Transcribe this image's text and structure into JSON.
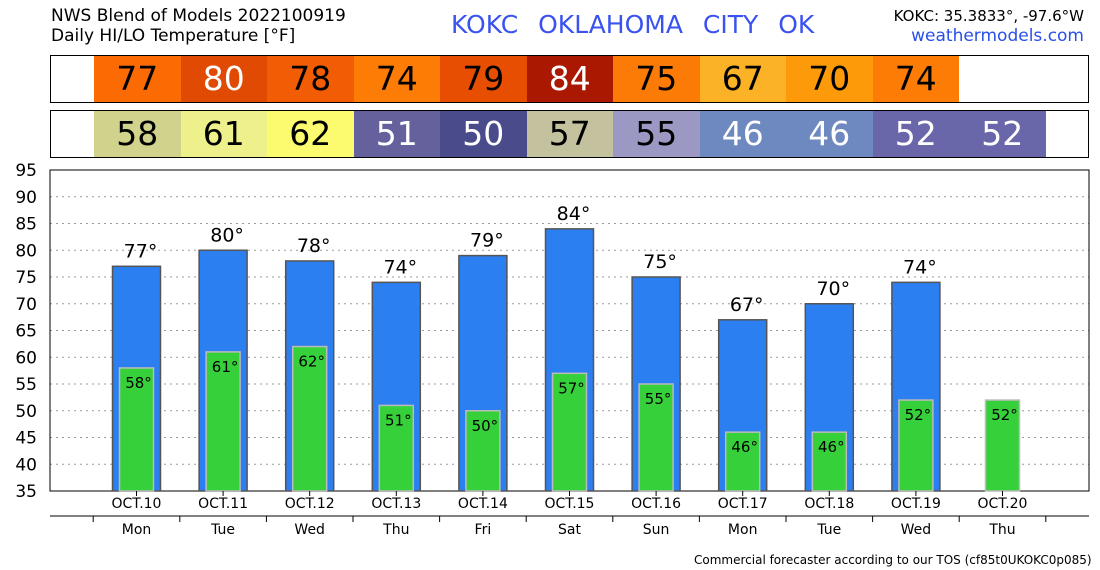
{
  "header": {
    "model_title": "NWS Blend of Models 2022100919",
    "variable_title": "Daily HI/LO Temperature [°F]",
    "station": "KOKC   OKLAHOMA CITY   OK",
    "coords": "KOKC: 35.3833°, -97.6°W",
    "website": "weathermodels.com"
  },
  "strips": {
    "hi": [
      {
        "value": "77",
        "color": "#fc6a04",
        "text_color": "#000000"
      },
      {
        "value": "80",
        "color": "#e04a02",
        "text_color": "#ffffff"
      },
      {
        "value": "78",
        "color": "#f25c04",
        "text_color": "#000000"
      },
      {
        "value": "74",
        "color": "#fc7c06",
        "text_color": "#000000"
      },
      {
        "value": "79",
        "color": "#e84e02",
        "text_color": "#000000"
      },
      {
        "value": "84",
        "color": "#ab1802",
        "text_color": "#ffffff"
      },
      {
        "value": "75",
        "color": "#fc7a06",
        "text_color": "#000000"
      },
      {
        "value": "67",
        "color": "#fcb226",
        "text_color": "#000000"
      },
      {
        "value": "70",
        "color": "#fc9a0a",
        "text_color": "#000000"
      },
      {
        "value": "74",
        "color": "#fc7c06",
        "text_color": "#000000"
      }
    ],
    "lo": [
      {
        "value": "58",
        "color": "#d1d28c",
        "text_color": "#000000"
      },
      {
        "value": "61",
        "color": "#eef08c",
        "text_color": "#000000"
      },
      {
        "value": "62",
        "color": "#fcfa6e",
        "text_color": "#000000"
      },
      {
        "value": "51",
        "color": "#64619c",
        "text_color": "#ffffff"
      },
      {
        "value": "50",
        "color": "#4a4b8a",
        "text_color": "#ffffff"
      },
      {
        "value": "57",
        "color": "#c4c29e",
        "text_color": "#000000"
      },
      {
        "value": "55",
        "color": "#9c98c4",
        "text_color": "#000000"
      },
      {
        "value": "46",
        "color": "#6e88c0",
        "text_color": "#ffffff"
      },
      {
        "value": "46",
        "color": "#6e88c0",
        "text_color": "#ffffff"
      },
      {
        "value": "52",
        "color": "#6a66aa",
        "text_color": "#ffffff"
      },
      {
        "value": "52",
        "color": "#6a66aa",
        "text_color": "#ffffff"
      }
    ]
  },
  "chart_data": {
    "type": "bar",
    "categories": [
      "OCT.10",
      "OCT.11",
      "OCT.12",
      "OCT.13",
      "OCT.14",
      "OCT.15",
      "OCT.16",
      "OCT.17",
      "OCT.18",
      "OCT.19",
      "OCT.20"
    ],
    "weekdays": [
      "Mon",
      "Tue",
      "Wed",
      "Thu",
      "Fri",
      "Sat",
      "Sun",
      "Mon",
      "Tue",
      "Wed",
      "Thu"
    ],
    "series": [
      {
        "values": [
          77,
          80,
          78,
          74,
          79,
          84,
          75,
          67,
          70,
          74,
          null
        ],
        "labels": [
          "77°",
          "80°",
          "78°",
          "74°",
          "79°",
          "84°",
          "75°",
          "67°",
          "70°",
          "74°",
          ""
        ],
        "color": "#2b7ff0"
      },
      {
        "values": [
          58,
          61,
          62,
          51,
          50,
          57,
          55,
          46,
          46,
          52,
          52
        ],
        "labels": [
          "58°",
          "61°",
          "62°",
          "51°",
          "50°",
          "57°",
          "55°",
          "46°",
          "46°",
          "52°",
          "52°"
        ],
        "color": "#36d13a"
      }
    ],
    "y_ticks": [
      "95",
      "90",
      "85",
      "80",
      "75",
      "70",
      "65",
      "60",
      "55",
      "50",
      "45",
      "40",
      "35"
    ],
    "ylim": [
      35,
      95
    ],
    "grid": true,
    "title": "",
    "xlabel": "",
    "ylabel": ""
  },
  "footer": "Commercial forecaster according to our TOS (cf85t0UKOKC0p085)"
}
